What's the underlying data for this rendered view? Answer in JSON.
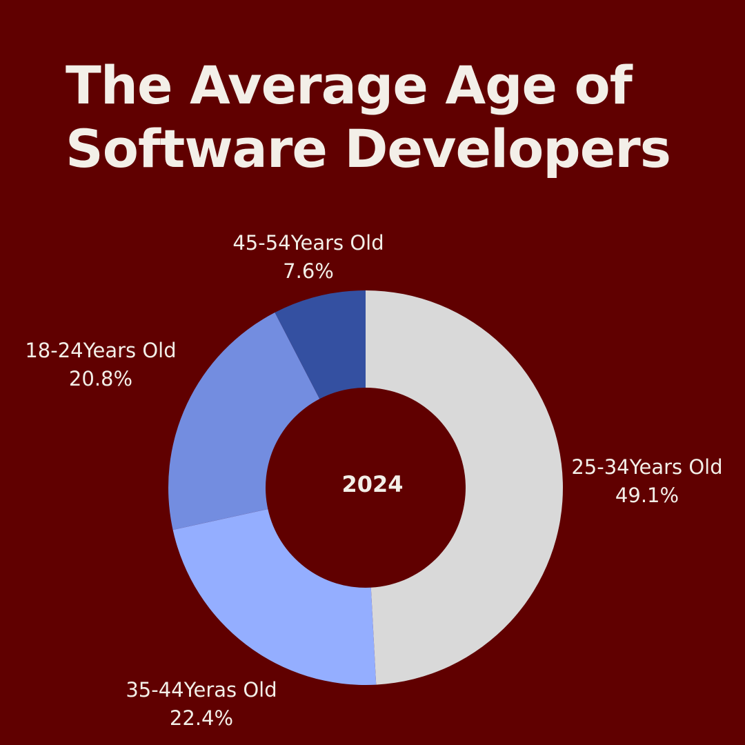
{
  "chart_data": {
    "type": "pie",
    "variant": "donut",
    "title": "The Average Age of Software Developers",
    "center_label": "2024",
    "start": "top",
    "direction": "clockwise",
    "legend": "none",
    "slices": [
      {
        "label": "25-34Years Old",
        "value": 49.1,
        "value_label": "49.1%",
        "color": "#d9d9d9"
      },
      {
        "label": "35-44Yeras Old",
        "value": 22.4,
        "value_label": "22.4%",
        "color": "#94aeff"
      },
      {
        "label": "18-24Years Old",
        "value": 20.8,
        "value_label": "20.8%",
        "color": "#738de0"
      },
      {
        "label": "45-54Years Old",
        "value": 7.6,
        "value_label": "7.6%",
        "color": "#3450a1"
      }
    ]
  },
  "colors": {
    "background": "#600000",
    "text": "#f3efe8"
  }
}
